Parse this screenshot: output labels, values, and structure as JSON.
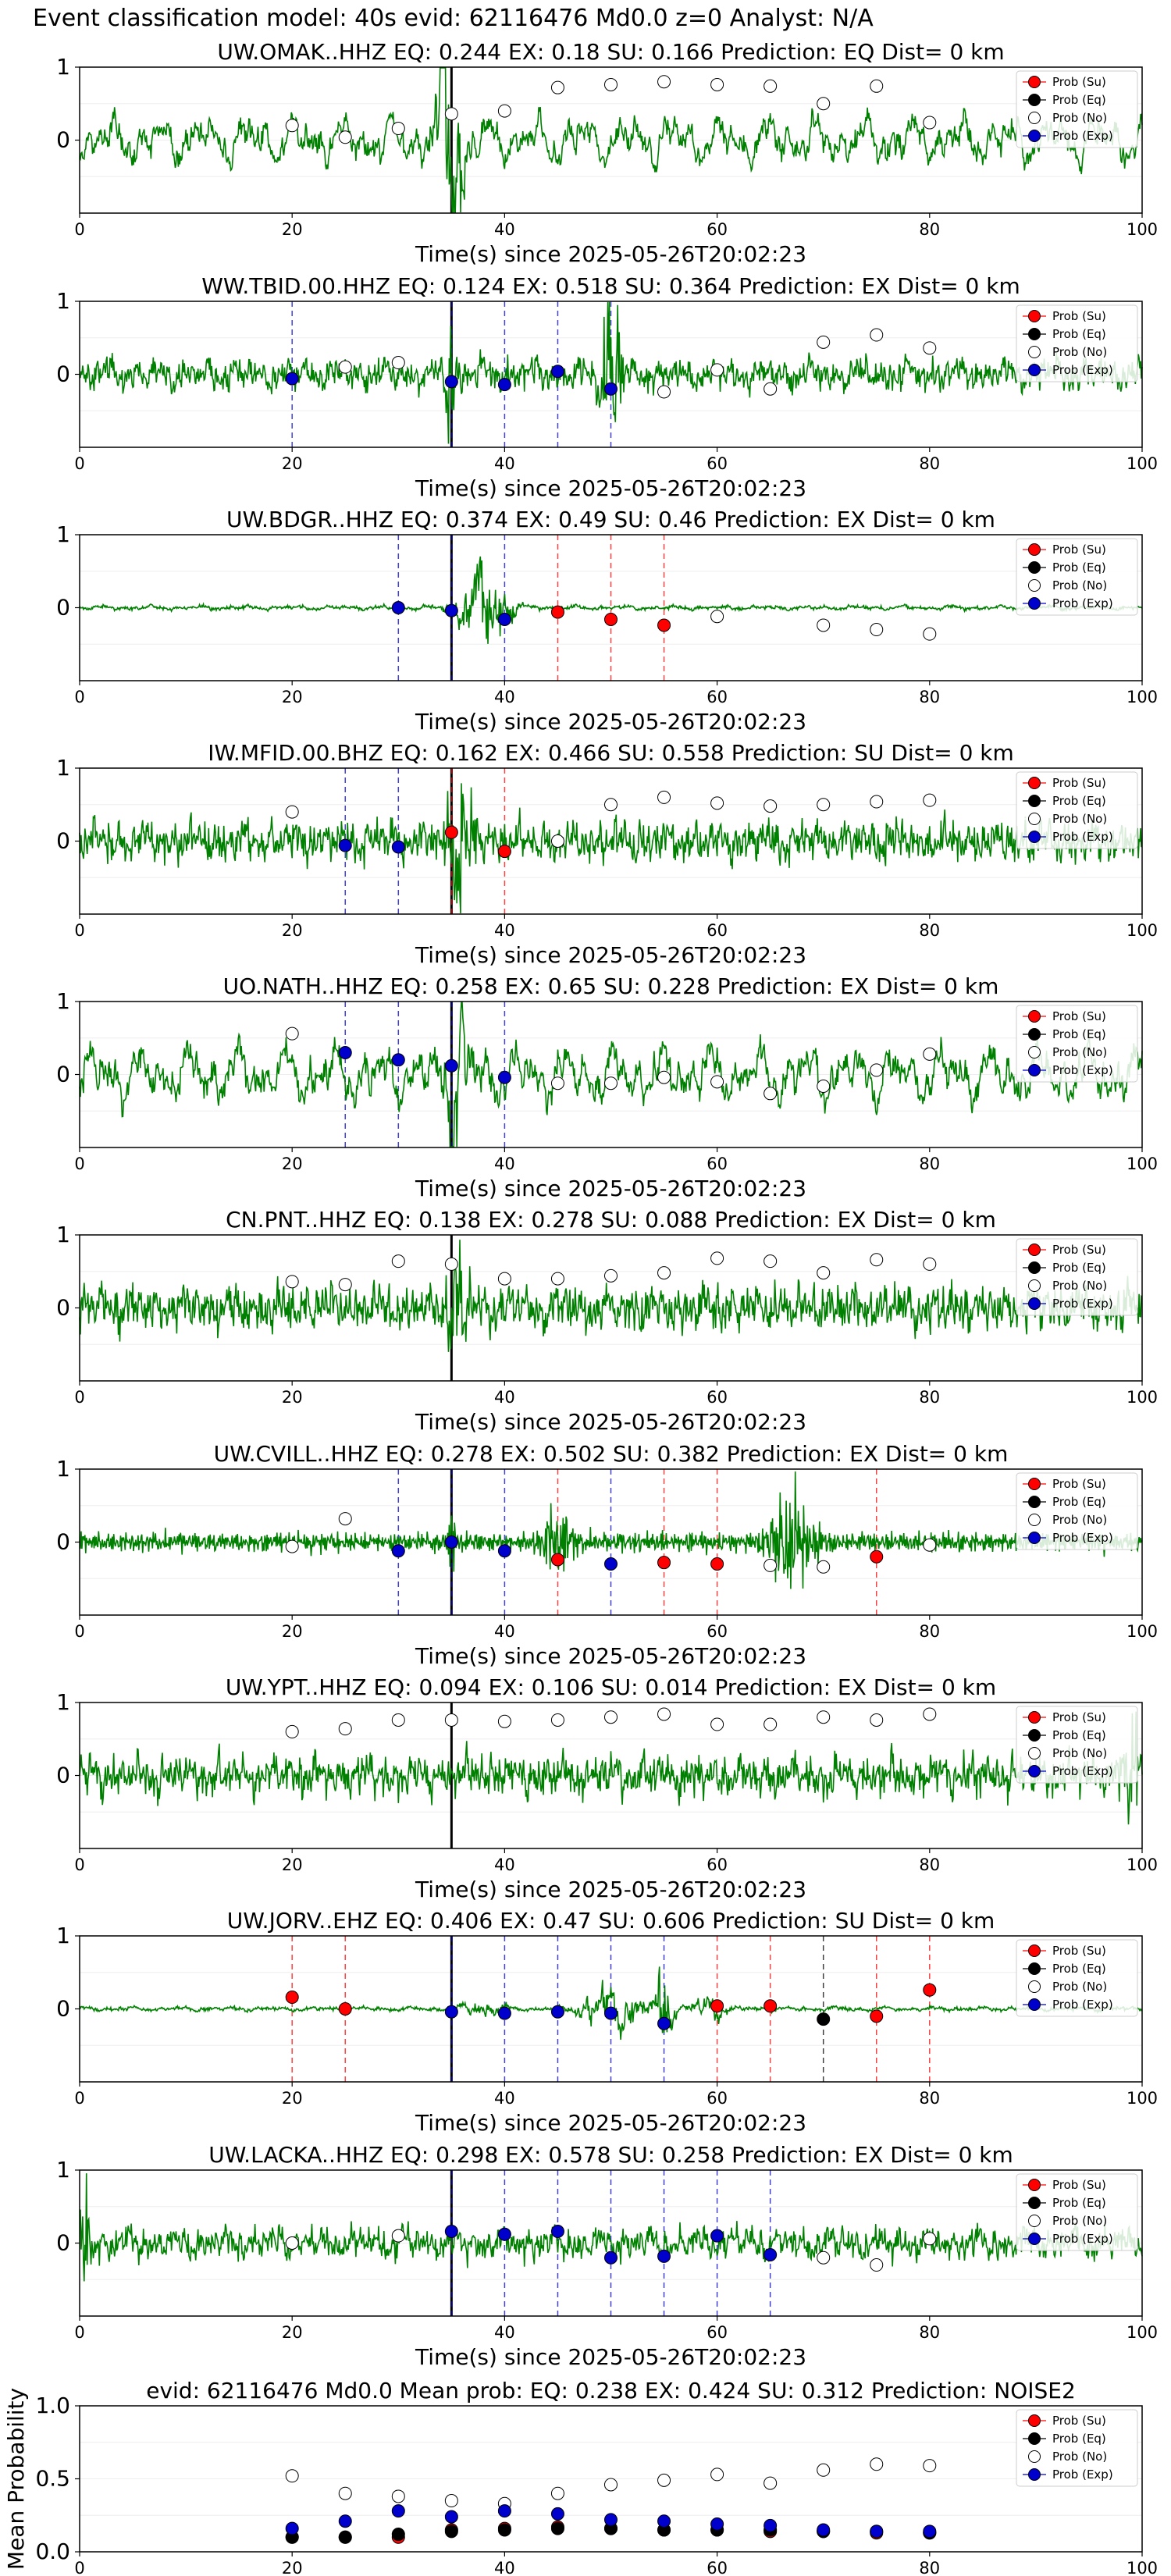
{
  "page_title": "Event classification model: 40s evid: 62116476 Md0.0 z=0 Analyst: N/A",
  "colors": {
    "waveform": "#008000",
    "su": "#ff0000",
    "eq": "#000000",
    "no": "#ffffff",
    "exp": "#0000cc",
    "arrival": "#000000"
  },
  "legend": [
    "Prob (Su)",
    "Prob (Eq)",
    "Prob (No)",
    "Prob (Exp)"
  ],
  "x_axis": {
    "label": "Time(s) since 2025-05-26T20:02:23",
    "ticks": [
      0,
      20,
      40,
      60,
      80,
      100
    ],
    "range": [
      0,
      100
    ]
  },
  "waveform_y_ticks": [
    "1",
    "0"
  ],
  "arrival_time": 35,
  "chart_data": [
    {
      "type": "line",
      "title": "UW.OMAK..HHZ   EQ: 0.244  EX: 0.18  SU: 0.166   Prediction: EQ    Dist= 0 km",
      "style": "lowfreq",
      "amp": 0.45,
      "bursts": [
        {
          "t": 35,
          "w": 1.5,
          "a": 2.2
        }
      ],
      "points": [
        {
          "x": 20,
          "c": "no",
          "p": 0.6
        },
        {
          "x": 25,
          "c": "no",
          "p": 0.52
        },
        {
          "x": 30,
          "c": "no",
          "p": 0.58
        },
        {
          "x": 35,
          "c": "no",
          "p": 0.68
        },
        {
          "x": 40,
          "c": "no",
          "p": 0.7
        },
        {
          "x": 45,
          "c": "no",
          "p": 0.86
        },
        {
          "x": 50,
          "c": "no",
          "p": 0.88
        },
        {
          "x": 55,
          "c": "no",
          "p": 0.9
        },
        {
          "x": 60,
          "c": "no",
          "p": 0.88
        },
        {
          "x": 65,
          "c": "no",
          "p": 0.87
        },
        {
          "x": 70,
          "c": "no",
          "p": 0.75
        },
        {
          "x": 75,
          "c": "no",
          "p": 0.87
        },
        {
          "x": 80,
          "c": "no",
          "p": 0.62
        }
      ]
    },
    {
      "type": "line",
      "title": "WW.TBID.00.HHZ   EQ: 0.124  EX: 0.518  SU: 0.364   Prediction: EX    Dist= 0 km",
      "style": "mixed",
      "amp": 0.35,
      "bursts": [
        {
          "t": 50,
          "w": 0.8,
          "a": 2.2
        },
        {
          "t": 35,
          "w": 0.6,
          "a": 1.4
        }
      ],
      "points": [
        {
          "x": 20,
          "c": "exp",
          "p": 0.47
        },
        {
          "x": 25,
          "c": "no",
          "p": 0.55
        },
        {
          "x": 30,
          "c": "no",
          "p": 0.58
        },
        {
          "x": 35,
          "c": "exp",
          "p": 0.45
        },
        {
          "x": 40,
          "c": "exp",
          "p": 0.43
        },
        {
          "x": 45,
          "c": "exp",
          "p": 0.52
        },
        {
          "x": 50,
          "c": "exp",
          "p": 0.4
        },
        {
          "x": 55,
          "c": "no",
          "p": 0.38
        },
        {
          "x": 60,
          "c": "no",
          "p": 0.53
        },
        {
          "x": 65,
          "c": "no",
          "p": 0.4
        },
        {
          "x": 70,
          "c": "no",
          "p": 0.72
        },
        {
          "x": 75,
          "c": "no",
          "p": 0.77
        },
        {
          "x": 80,
          "c": "no",
          "p": 0.68
        }
      ]
    },
    {
      "type": "line",
      "title": "UW.BDGR..HHZ   EQ: 0.374  EX: 0.49  SU: 0.46   Prediction: EX    Dist= 0 km",
      "style": "quiet",
      "amp": 0.05,
      "bursts": [
        {
          "t": 38,
          "w": 2.2,
          "a": 1.0
        }
      ],
      "points": [
        {
          "x": 30,
          "c": "exp",
          "p": 0.5
        },
        {
          "x": 35,
          "c": "exp",
          "p": 0.48
        },
        {
          "x": 40,
          "c": "exp",
          "p": 0.42
        },
        {
          "x": 45,
          "c": "su",
          "p": 0.47
        },
        {
          "x": 50,
          "c": "su",
          "p": 0.42
        },
        {
          "x": 55,
          "c": "su",
          "p": 0.38
        },
        {
          "x": 60,
          "c": "no",
          "p": 0.44
        },
        {
          "x": 70,
          "c": "no",
          "p": 0.38
        },
        {
          "x": 75,
          "c": "no",
          "p": 0.35
        },
        {
          "x": 80,
          "c": "no",
          "p": 0.32
        }
      ]
    },
    {
      "type": "line",
      "title": "IW.MFID.00.BHZ   EQ: 0.162  EX: 0.466  SU: 0.558   Prediction: SU    Dist= 0 km",
      "style": "noisy",
      "amp": 0.45,
      "bursts": [
        {
          "t": 36,
          "w": 1.2,
          "a": 1.3
        }
      ],
      "points": [
        {
          "x": 20,
          "c": "no",
          "p": 0.7
        },
        {
          "x": 25,
          "c": "exp",
          "p": 0.47
        },
        {
          "x": 30,
          "c": "exp",
          "p": 0.46
        },
        {
          "x": 35,
          "c": "su",
          "p": 0.56
        },
        {
          "x": 40,
          "c": "su",
          "p": 0.43
        },
        {
          "x": 45,
          "c": "no",
          "p": 0.5
        },
        {
          "x": 50,
          "c": "no",
          "p": 0.75
        },
        {
          "x": 55,
          "c": "no",
          "p": 0.8
        },
        {
          "x": 60,
          "c": "no",
          "p": 0.76
        },
        {
          "x": 65,
          "c": "no",
          "p": 0.74
        },
        {
          "x": 70,
          "c": "no",
          "p": 0.75
        },
        {
          "x": 75,
          "c": "no",
          "p": 0.77
        },
        {
          "x": 80,
          "c": "no",
          "p": 0.78
        }
      ]
    },
    {
      "type": "line",
      "title": "UO.NATH..HHZ   EQ: 0.258  EX: 0.65  SU: 0.228   Prediction: EX    Dist= 0 km",
      "style": "lowfreq",
      "amp": 0.55,
      "bursts": [
        {
          "t": 35.5,
          "w": 1.0,
          "a": 1.4
        }
      ],
      "points": [
        {
          "x": 20,
          "c": "no",
          "p": 0.78
        },
        {
          "x": 25,
          "c": "exp",
          "p": 0.65
        },
        {
          "x": 30,
          "c": "exp",
          "p": 0.6
        },
        {
          "x": 35,
          "c": "exp",
          "p": 0.56
        },
        {
          "x": 40,
          "c": "exp",
          "p": 0.48
        },
        {
          "x": 45,
          "c": "no",
          "p": 0.44
        },
        {
          "x": 50,
          "c": "no",
          "p": 0.44
        },
        {
          "x": 55,
          "c": "no",
          "p": 0.48
        },
        {
          "x": 60,
          "c": "no",
          "p": 0.45
        },
        {
          "x": 65,
          "c": "no",
          "p": 0.37
        },
        {
          "x": 70,
          "c": "no",
          "p": 0.42
        },
        {
          "x": 75,
          "c": "no",
          "p": 0.53
        },
        {
          "x": 80,
          "c": "no",
          "p": 0.64
        }
      ]
    },
    {
      "type": "line",
      "title": "CN.PNT..HHZ   EQ: 0.138  EX: 0.278  SU: 0.088   Prediction: EX    Dist= 0 km",
      "style": "noisy",
      "amp": 0.5,
      "bursts": [
        {
          "t": 35.5,
          "w": 0.8,
          "a": 1.6
        }
      ],
      "points": [
        {
          "x": 20,
          "c": "no",
          "p": 0.68
        },
        {
          "x": 25,
          "c": "no",
          "p": 0.66
        },
        {
          "x": 30,
          "c": "no",
          "p": 0.82
        },
        {
          "x": 35,
          "c": "no",
          "p": 0.8
        },
        {
          "x": 40,
          "c": "no",
          "p": 0.7
        },
        {
          "x": 45,
          "c": "no",
          "p": 0.7
        },
        {
          "x": 50,
          "c": "no",
          "p": 0.72
        },
        {
          "x": 55,
          "c": "no",
          "p": 0.74
        },
        {
          "x": 60,
          "c": "no",
          "p": 0.84
        },
        {
          "x": 65,
          "c": "no",
          "p": 0.82
        },
        {
          "x": 70,
          "c": "no",
          "p": 0.74
        },
        {
          "x": 75,
          "c": "no",
          "p": 0.83
        },
        {
          "x": 80,
          "c": "no",
          "p": 0.8
        }
      ]
    },
    {
      "type": "line",
      "title": "UW.CVILL..HHZ   EQ: 0.278  EX: 0.502  SU: 0.382   Prediction: EX    Dist= 0 km",
      "style": "hf",
      "amp": 0.18,
      "bursts": [
        {
          "t": 45,
          "w": 1.5,
          "a": 0.5
        },
        {
          "t": 67,
          "w": 2.0,
          "a": 1.0
        },
        {
          "t": 35,
          "w": 0.5,
          "a": 0.5
        }
      ],
      "points": [
        {
          "x": 20,
          "c": "no",
          "p": 0.47
        },
        {
          "x": 25,
          "c": "no",
          "p": 0.66
        },
        {
          "x": 30,
          "c": "exp",
          "p": 0.44
        },
        {
          "x": 35,
          "c": "exp",
          "p": 0.5
        },
        {
          "x": 40,
          "c": "exp",
          "p": 0.44
        },
        {
          "x": 45,
          "c": "su",
          "p": 0.38
        },
        {
          "x": 50,
          "c": "exp",
          "p": 0.35
        },
        {
          "x": 55,
          "c": "su",
          "p": 0.36
        },
        {
          "x": 60,
          "c": "su",
          "p": 0.35
        },
        {
          "x": 65,
          "c": "no",
          "p": 0.34
        },
        {
          "x": 70,
          "c": "no",
          "p": 0.33
        },
        {
          "x": 75,
          "c": "su",
          "p": 0.4
        },
        {
          "x": 80,
          "c": "no",
          "p": 0.48
        }
      ]
    },
    {
      "type": "line",
      "title": "UW.YPT..HHZ   EQ: 0.094  EX: 0.106  SU: 0.014   Prediction: EX    Dist= 0 km",
      "style": "noisy",
      "amp": 0.45,
      "bursts": [
        {
          "t": 99,
          "w": 0.8,
          "a": 1.0
        }
      ],
      "points": [
        {
          "x": 20,
          "c": "no",
          "p": 0.8
        },
        {
          "x": 25,
          "c": "no",
          "p": 0.82
        },
        {
          "x": 30,
          "c": "no",
          "p": 0.88
        },
        {
          "x": 35,
          "c": "no",
          "p": 0.88
        },
        {
          "x": 40,
          "c": "no",
          "p": 0.87
        },
        {
          "x": 45,
          "c": "no",
          "p": 0.88
        },
        {
          "x": 50,
          "c": "no",
          "p": 0.9
        },
        {
          "x": 55,
          "c": "no",
          "p": 0.92
        },
        {
          "x": 60,
          "c": "no",
          "p": 0.85
        },
        {
          "x": 65,
          "c": "no",
          "p": 0.85
        },
        {
          "x": 70,
          "c": "no",
          "p": 0.9
        },
        {
          "x": 75,
          "c": "no",
          "p": 0.88
        },
        {
          "x": 80,
          "c": "no",
          "p": 0.92
        }
      ]
    },
    {
      "type": "line",
      "title": "UW.JORV..EHZ   EQ: 0.406  EX: 0.47  SU: 0.606   Prediction: SU    Dist= 0 km",
      "style": "quiet",
      "amp": 0.05,
      "bursts": [
        {
          "t": 50,
          "w": 2.5,
          "a": 0.6
        },
        {
          "t": 55,
          "w": 0.8,
          "a": 0.95
        },
        {
          "t": 38,
          "w": 2.0,
          "a": 0.15
        },
        {
          "t": 59,
          "w": 1.5,
          "a": 0.3
        }
      ],
      "points": [
        {
          "x": 20,
          "c": "su",
          "p": 0.58
        },
        {
          "x": 25,
          "c": "su",
          "p": 0.5
        },
        {
          "x": 35,
          "c": "exp",
          "p": 0.48
        },
        {
          "x": 40,
          "c": "exp",
          "p": 0.47
        },
        {
          "x": 45,
          "c": "exp",
          "p": 0.48
        },
        {
          "x": 50,
          "c": "exp",
          "p": 0.47
        },
        {
          "x": 55,
          "c": "exp",
          "p": 0.4
        },
        {
          "x": 60,
          "c": "su",
          "p": 0.52
        },
        {
          "x": 65,
          "c": "su",
          "p": 0.52
        },
        {
          "x": 70,
          "c": "eq",
          "p": 0.43
        },
        {
          "x": 75,
          "c": "su",
          "p": 0.45
        },
        {
          "x": 80,
          "c": "su",
          "p": 0.63
        }
      ]
    },
    {
      "type": "line",
      "title": "UW.LACKA..HHZ   EQ: 0.298  EX: 0.578  SU: 0.258   Prediction: EX    Dist= 0 km",
      "style": "mixed",
      "amp": 0.35,
      "bursts": [
        {
          "t": 0.5,
          "w": 0.6,
          "a": 1.3
        }
      ],
      "points": [
        {
          "x": 20,
          "c": "no",
          "p": 0.5
        },
        {
          "x": 30,
          "c": "no",
          "p": 0.55
        },
        {
          "x": 35,
          "c": "exp",
          "p": 0.58
        },
        {
          "x": 40,
          "c": "exp",
          "p": 0.56
        },
        {
          "x": 45,
          "c": "exp",
          "p": 0.58
        },
        {
          "x": 50,
          "c": "exp",
          "p": 0.4
        },
        {
          "x": 55,
          "c": "exp",
          "p": 0.41
        },
        {
          "x": 60,
          "c": "exp",
          "p": 0.55
        },
        {
          "x": 65,
          "c": "exp",
          "p": 0.42
        },
        {
          "x": 70,
          "c": "no",
          "p": 0.4
        },
        {
          "x": 75,
          "c": "no",
          "p": 0.35
        },
        {
          "x": 80,
          "c": "no",
          "p": 0.53
        }
      ]
    },
    {
      "type": "scatter",
      "title": "evid: 62116476  Md0.0   Mean prob:   EQ: 0.238  EX: 0.424  SU: 0.312   Prediction: NOISE2",
      "ylabel": "Mean Probability",
      "ylim": [
        0,
        1
      ],
      "y_ticks": [
        "0.0",
        "0.5",
        "1.0"
      ],
      "x": [
        20,
        25,
        30,
        35,
        40,
        45,
        50,
        55,
        60,
        65,
        70,
        75,
        80
      ],
      "series": [
        {
          "name": "Prob (Su)",
          "c": "su",
          "values": [
            0.1,
            0.1,
            0.1,
            0.15,
            0.16,
            0.17,
            0.16,
            0.15,
            0.15,
            0.14,
            0.14,
            0.13,
            0.13
          ]
        },
        {
          "name": "Prob (Eq)",
          "c": "eq",
          "values": [
            0.1,
            0.1,
            0.12,
            0.14,
            0.15,
            0.16,
            0.16,
            0.15,
            0.15,
            0.15,
            0.14,
            0.14,
            0.13
          ]
        },
        {
          "name": "Prob (No)",
          "c": "no",
          "values": [
            0.52,
            0.4,
            0.38,
            0.35,
            0.33,
            0.4,
            0.46,
            0.49,
            0.53,
            0.47,
            0.56,
            0.6,
            0.59
          ]
        },
        {
          "name": "Prob (Exp)",
          "c": "exp",
          "values": [
            0.16,
            0.21,
            0.28,
            0.24,
            0.28,
            0.26,
            0.22,
            0.21,
            0.19,
            0.18,
            0.15,
            0.14,
            0.14
          ]
        }
      ]
    }
  ]
}
